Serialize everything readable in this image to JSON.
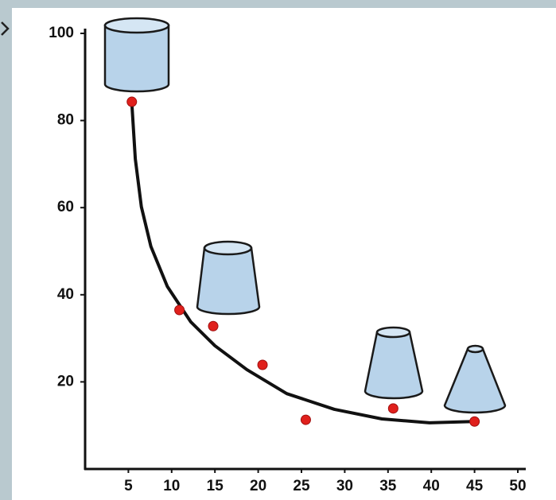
{
  "chart_data": {
    "type": "scatter",
    "x": [
      5.4,
      10.9,
      14.8,
      20.5,
      25.5,
      35.6,
      45
    ],
    "values": [
      84.3,
      36.5,
      32.8,
      23.9,
      11.3,
      13.9,
      10.9
    ],
    "color": "#e0201c",
    "curve": {
      "color": "#111111",
      "x": [
        5.4,
        5.8,
        6.5,
        7.6,
        9.5,
        12.2,
        15.0,
        18.7,
        23.3,
        28.8,
        34.3,
        39.8,
        44.9
      ],
      "values": [
        83.9,
        71.2,
        60.2,
        51.1,
        41.9,
        33.8,
        28.3,
        22.8,
        17.3,
        13.7,
        11.5,
        10.6,
        10.9
      ]
    },
    "xlim": [
      0,
      50
    ],
    "xticks": [
      5,
      10,
      15,
      20,
      25,
      30,
      35,
      40,
      45,
      50
    ],
    "ylim": [
      0,
      100
    ],
    "yticks": [
      20,
      40,
      60,
      80,
      100
    ]
  }
}
